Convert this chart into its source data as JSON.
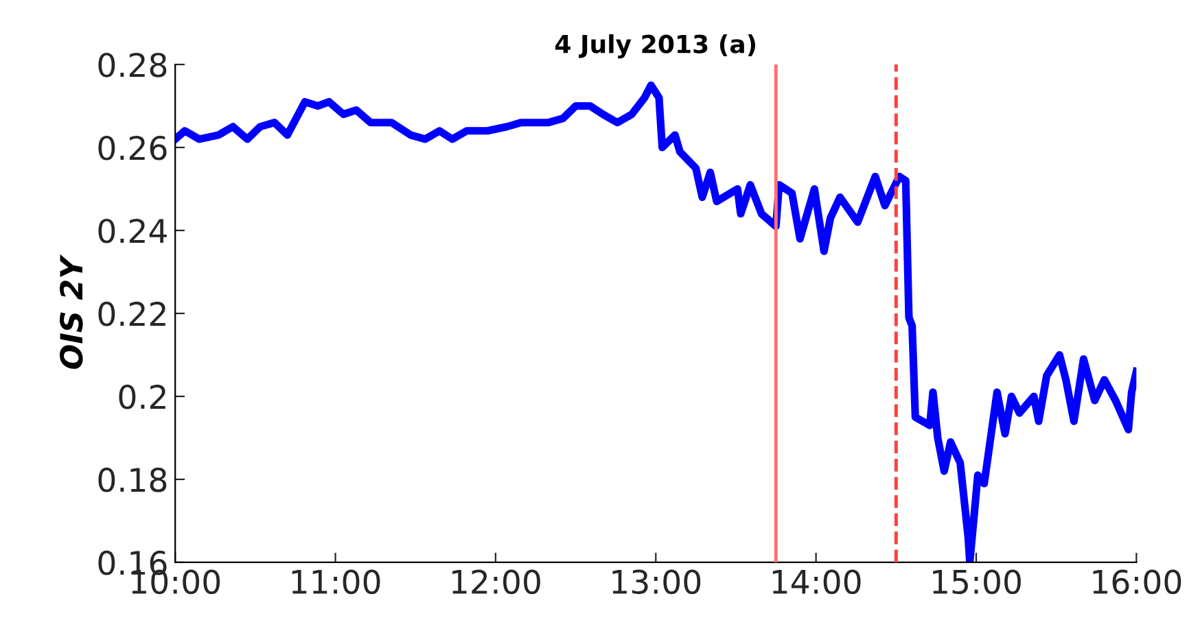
{
  "chart_data": {
    "type": "line",
    "title": "4 July 2013 (a)",
    "ylabel": "OIS 2Y",
    "x": [
      10.0,
      10.06,
      10.15,
      10.27,
      10.36,
      10.45,
      10.53,
      10.62,
      10.7,
      10.81,
      10.89,
      10.96,
      11.05,
      11.13,
      11.22,
      11.35,
      11.47,
      11.56,
      11.65,
      11.73,
      11.82,
      11.95,
      12.07,
      12.16,
      12.25,
      12.33,
      12.42,
      12.5,
      12.59,
      12.67,
      12.76,
      12.85,
      12.93,
      12.97,
      13.02,
      13.04,
      13.12,
      13.15,
      13.25,
      13.29,
      13.34,
      13.38,
      13.51,
      13.53,
      13.59,
      13.66,
      13.75,
      13.77,
      13.85,
      13.9,
      13.99,
      14.05,
      14.09,
      14.15,
      14.26,
      14.37,
      14.43,
      14.52,
      14.56,
      14.58,
      14.6,
      14.62,
      14.71,
      14.73,
      14.76,
      14.8,
      14.84,
      14.9,
      14.95,
      14.96,
      15.01,
      15.05,
      15.13,
      15.18,
      15.22,
      15.27,
      15.36,
      15.39,
      15.44,
      15.52,
      15.56,
      15.61,
      15.67,
      15.74,
      15.8,
      15.87,
      15.95,
      15.97,
      16.0
    ],
    "series": [
      {
        "color": "#0000ff",
        "values": [
          0.262,
          0.264,
          0.262,
          0.263,
          0.265,
          0.262,
          0.265,
          0.266,
          0.263,
          0.271,
          0.27,
          0.271,
          0.268,
          0.269,
          0.266,
          0.266,
          0.263,
          0.262,
          0.264,
          0.262,
          0.264,
          0.264,
          0.265,
          0.266,
          0.266,
          0.266,
          0.267,
          0.27,
          0.27,
          0.268,
          0.266,
          0.268,
          0.272,
          0.275,
          0.272,
          0.26,
          0.263,
          0.259,
          0.255,
          0.248,
          0.254,
          0.247,
          0.25,
          0.244,
          0.251,
          0.244,
          0.241,
          0.251,
          0.249,
          0.238,
          0.25,
          0.235,
          0.243,
          0.248,
          0.242,
          0.253,
          0.246,
          0.253,
          0.252,
          0.219,
          0.217,
          0.195,
          0.193,
          0.201,
          0.19,
          0.182,
          0.189,
          0.184,
          0.166,
          0.16,
          0.181,
          0.179,
          0.201,
          0.191,
          0.2,
          0.196,
          0.2,
          0.194,
          0.205,
          0.21,
          0.204,
          0.194,
          0.209,
          0.199,
          0.204,
          0.199,
          0.192,
          0.201,
          0.206
        ]
      }
    ],
    "xlim": [
      10,
      16
    ],
    "xticks": [
      {
        "value": 10,
        "label": "10:00"
      },
      {
        "value": 11,
        "label": "11:00"
      },
      {
        "value": 12,
        "label": "12:00"
      },
      {
        "value": 13,
        "label": "13:00"
      },
      {
        "value": 14,
        "label": "14:00"
      },
      {
        "value": 15,
        "label": "15:00"
      },
      {
        "value": 16,
        "label": "16:00"
      }
    ],
    "ylim": [
      0.16,
      0.28
    ],
    "yticks": [
      0.16,
      0.18,
      0.2,
      0.22,
      0.24,
      0.26,
      0.28
    ],
    "ref_lines": [
      {
        "axis": "x",
        "value": 13.75,
        "color": "#ff7070",
        "line_style": "solid"
      },
      {
        "axis": "x",
        "value": 14.5,
        "color": "#ff4040",
        "line_style": "dashed"
      }
    ],
    "grid": false,
    "legend": false,
    "marker": "none",
    "line_style": "solid"
  }
}
